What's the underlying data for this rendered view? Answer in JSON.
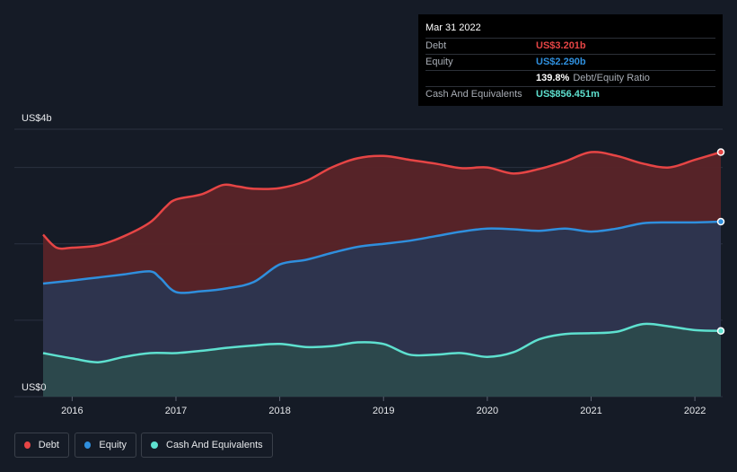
{
  "tooltip": {
    "date": "Mar 31 2022",
    "rows": [
      {
        "label": "Debt",
        "value": "US$3.201b",
        "extra": "",
        "color": "#e64545"
      },
      {
        "label": "Equity",
        "value": "US$2.290b",
        "extra": "",
        "color": "#2f8fdd"
      },
      {
        "label": "",
        "value": "139.8%",
        "extra": "Debt/Equity Ratio",
        "color": "#ffffff"
      },
      {
        "label": "Cash And Equivalents",
        "value": "US$856.451m",
        "extra": "",
        "color": "#5ee0cf"
      }
    ]
  },
  "legend": [
    {
      "label": "Debt",
      "color": "#e64545"
    },
    {
      "label": "Equity",
      "color": "#2f8fdd"
    },
    {
      "label": "Cash And Equivalents",
      "color": "#5ee0cf"
    }
  ],
  "chart_data": {
    "type": "area",
    "title": "",
    "xlabel": "",
    "ylabel": "",
    "xlim": [
      2015.72,
      2022.25
    ],
    "ylim": [
      0,
      3.5
    ],
    "y_tick_labels": {
      "top": "US$4b",
      "bottom": "US$0"
    },
    "x_ticks": [
      2016,
      2017,
      2018,
      2019,
      2020,
      2021,
      2022
    ],
    "x_tick_labels": [
      "2016",
      "2017",
      "2018",
      "2019",
      "2020",
      "2021",
      "2022"
    ],
    "gridlines": [
      1,
      2,
      3,
      3.5
    ],
    "series": [
      {
        "name": "Debt",
        "color": "#e64545",
        "fill": "#5a2428",
        "x": [
          2015.72,
          2015.85,
          2016.0,
          2016.25,
          2016.5,
          2016.75,
          2016.9,
          2017.0,
          2017.25,
          2017.45,
          2017.6,
          2017.75,
          2018.0,
          2018.25,
          2018.5,
          2018.75,
          2019.0,
          2019.25,
          2019.5,
          2019.75,
          2020.0,
          2020.25,
          2020.5,
          2020.75,
          2021.0,
          2021.25,
          2021.5,
          2021.75,
          2022.0,
          2022.25
        ],
        "values": [
          2.12,
          1.95,
          1.95,
          1.98,
          2.1,
          2.28,
          2.48,
          2.58,
          2.65,
          2.77,
          2.75,
          2.72,
          2.73,
          2.82,
          3.0,
          3.12,
          3.15,
          3.1,
          3.05,
          2.99,
          3.0,
          2.92,
          2.98,
          3.08,
          3.2,
          3.15,
          3.05,
          3.0,
          3.1,
          3.2
        ]
      },
      {
        "name": "Equity",
        "color": "#2f8fdd",
        "fill": "#2c3650",
        "x": [
          2015.72,
          2016.0,
          2016.25,
          2016.5,
          2016.75,
          2016.85,
          2017.0,
          2017.25,
          2017.5,
          2017.75,
          2018.0,
          2018.25,
          2018.5,
          2018.75,
          2019.0,
          2019.25,
          2019.5,
          2019.75,
          2020.0,
          2020.25,
          2020.5,
          2020.75,
          2021.0,
          2021.25,
          2021.5,
          2021.75,
          2022.0,
          2022.25
        ],
        "values": [
          1.48,
          1.52,
          1.56,
          1.6,
          1.64,
          1.55,
          1.37,
          1.38,
          1.42,
          1.5,
          1.73,
          1.79,
          1.88,
          1.96,
          2.0,
          2.04,
          2.1,
          2.16,
          2.2,
          2.19,
          2.17,
          2.2,
          2.16,
          2.2,
          2.27,
          2.28,
          2.28,
          2.29
        ]
      },
      {
        "name": "Cash And Equivalents",
        "color": "#5ee0cf",
        "fill": "#2c4a4c",
        "x": [
          2015.72,
          2016.0,
          2016.25,
          2016.5,
          2016.75,
          2017.0,
          2017.25,
          2017.5,
          2017.75,
          2018.0,
          2018.25,
          2018.5,
          2018.75,
          2019.0,
          2019.25,
          2019.5,
          2019.75,
          2020.0,
          2020.25,
          2020.5,
          2020.75,
          2021.0,
          2021.25,
          2021.5,
          2021.75,
          2022.0,
          2022.25
        ],
        "values": [
          0.57,
          0.5,
          0.45,
          0.52,
          0.57,
          0.57,
          0.6,
          0.64,
          0.67,
          0.69,
          0.65,
          0.66,
          0.71,
          0.69,
          0.55,
          0.55,
          0.57,
          0.52,
          0.58,
          0.75,
          0.82,
          0.83,
          0.85,
          0.95,
          0.92,
          0.87,
          0.86
        ]
      }
    ]
  }
}
